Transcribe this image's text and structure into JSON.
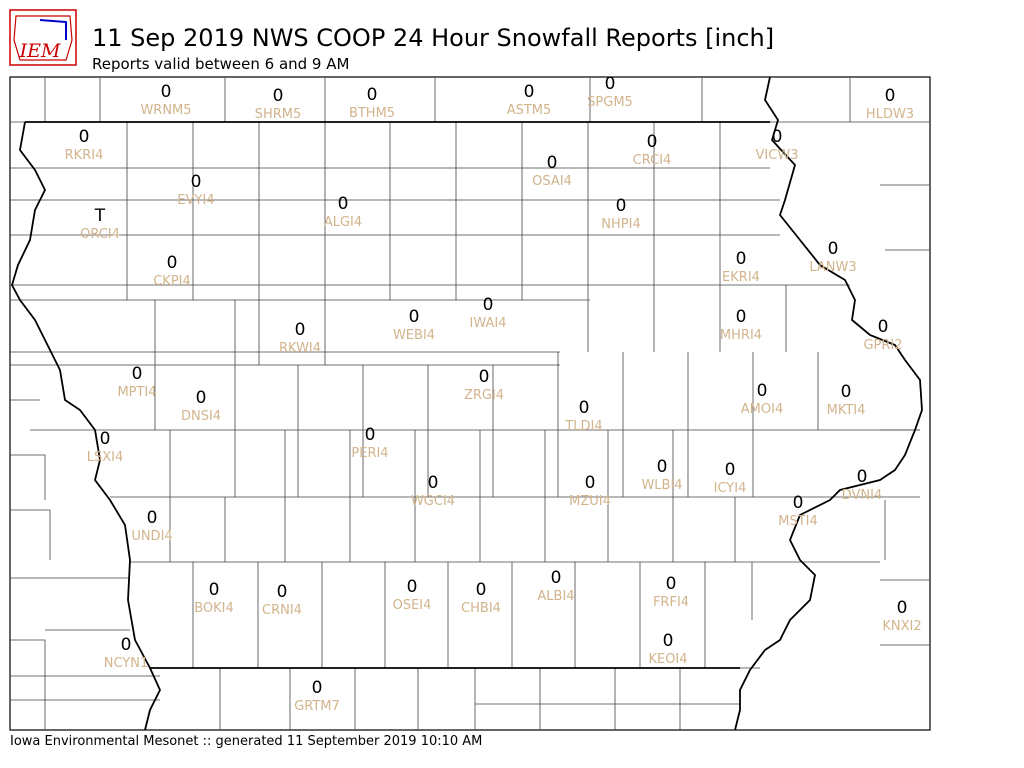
{
  "logo": "IEM",
  "title": "11 Sep 2019 NWS COOP 24 Hour Snowfall Reports [inch]",
  "subtitle": "Reports valid between 6 and 9 AM",
  "footer": "Iowa Environmental Mesonet :: generated 11 September 2019 10:10 AM",
  "stations": [
    {
      "id": "WRNM5",
      "value": 0
    },
    {
      "id": "SHRM5",
      "value": 0
    },
    {
      "id": "BTHM5",
      "value": 0
    },
    {
      "id": "ASTM5",
      "value": 0
    },
    {
      "id": "SPGM5",
      "value": 0
    },
    {
      "id": "HLDW3",
      "value": 0
    },
    {
      "id": "RKRI4",
      "value": 0
    },
    {
      "id": "CRCI4",
      "value": 0
    },
    {
      "id": "VICW3",
      "value": 0
    },
    {
      "id": "OSAI4",
      "value": 0
    },
    {
      "id": "EVYI4",
      "value": 0
    },
    {
      "id": "ALGI4",
      "value": 0
    },
    {
      "id": "NHPI4",
      "value": 0
    },
    {
      "id": "ORCI4",
      "value": "T"
    },
    {
      "id": "LANW3",
      "value": 0
    },
    {
      "id": "EKRI4",
      "value": 0
    },
    {
      "id": "CKPI4",
      "value": 0
    },
    {
      "id": "IWAI4",
      "value": 0
    },
    {
      "id": "WEBI4",
      "value": 0
    },
    {
      "id": "MHRI4",
      "value": 0
    },
    {
      "id": "GPRI2",
      "value": 0
    },
    {
      "id": "RKWI4",
      "value": 0
    },
    {
      "id": "MPTI4",
      "value": 0
    },
    {
      "id": "ZRGI4",
      "value": 0
    },
    {
      "id": "AMOI4",
      "value": 0
    },
    {
      "id": "MKTI4",
      "value": 0
    },
    {
      "id": "DNSI4",
      "value": 0
    },
    {
      "id": "TLDI4",
      "value": 0
    },
    {
      "id": "PERI4",
      "value": 0
    },
    {
      "id": "LSXI4",
      "value": 0
    },
    {
      "id": "WLBI4",
      "value": 0
    },
    {
      "id": "ICYI4",
      "value": 0
    },
    {
      "id": "DVNI4",
      "value": 0
    },
    {
      "id": "WGCI4",
      "value": 0
    },
    {
      "id": "MZUI4",
      "value": 0
    },
    {
      "id": "MSTI4",
      "value": 0
    },
    {
      "id": "UNDI4",
      "value": 0
    },
    {
      "id": "ALBI4",
      "value": 0
    },
    {
      "id": "FRFI4",
      "value": 0
    },
    {
      "id": "OSEI4",
      "value": 0
    },
    {
      "id": "CHBI4",
      "value": 0
    },
    {
      "id": "BOKI4",
      "value": 0
    },
    {
      "id": "CRNI4",
      "value": 0
    },
    {
      "id": "KNXI2",
      "value": 0
    },
    {
      "id": "NCYN1",
      "value": 0
    },
    {
      "id": "KEOI4",
      "value": 0
    },
    {
      "id": "GRTM7",
      "value": 0
    }
  ]
}
